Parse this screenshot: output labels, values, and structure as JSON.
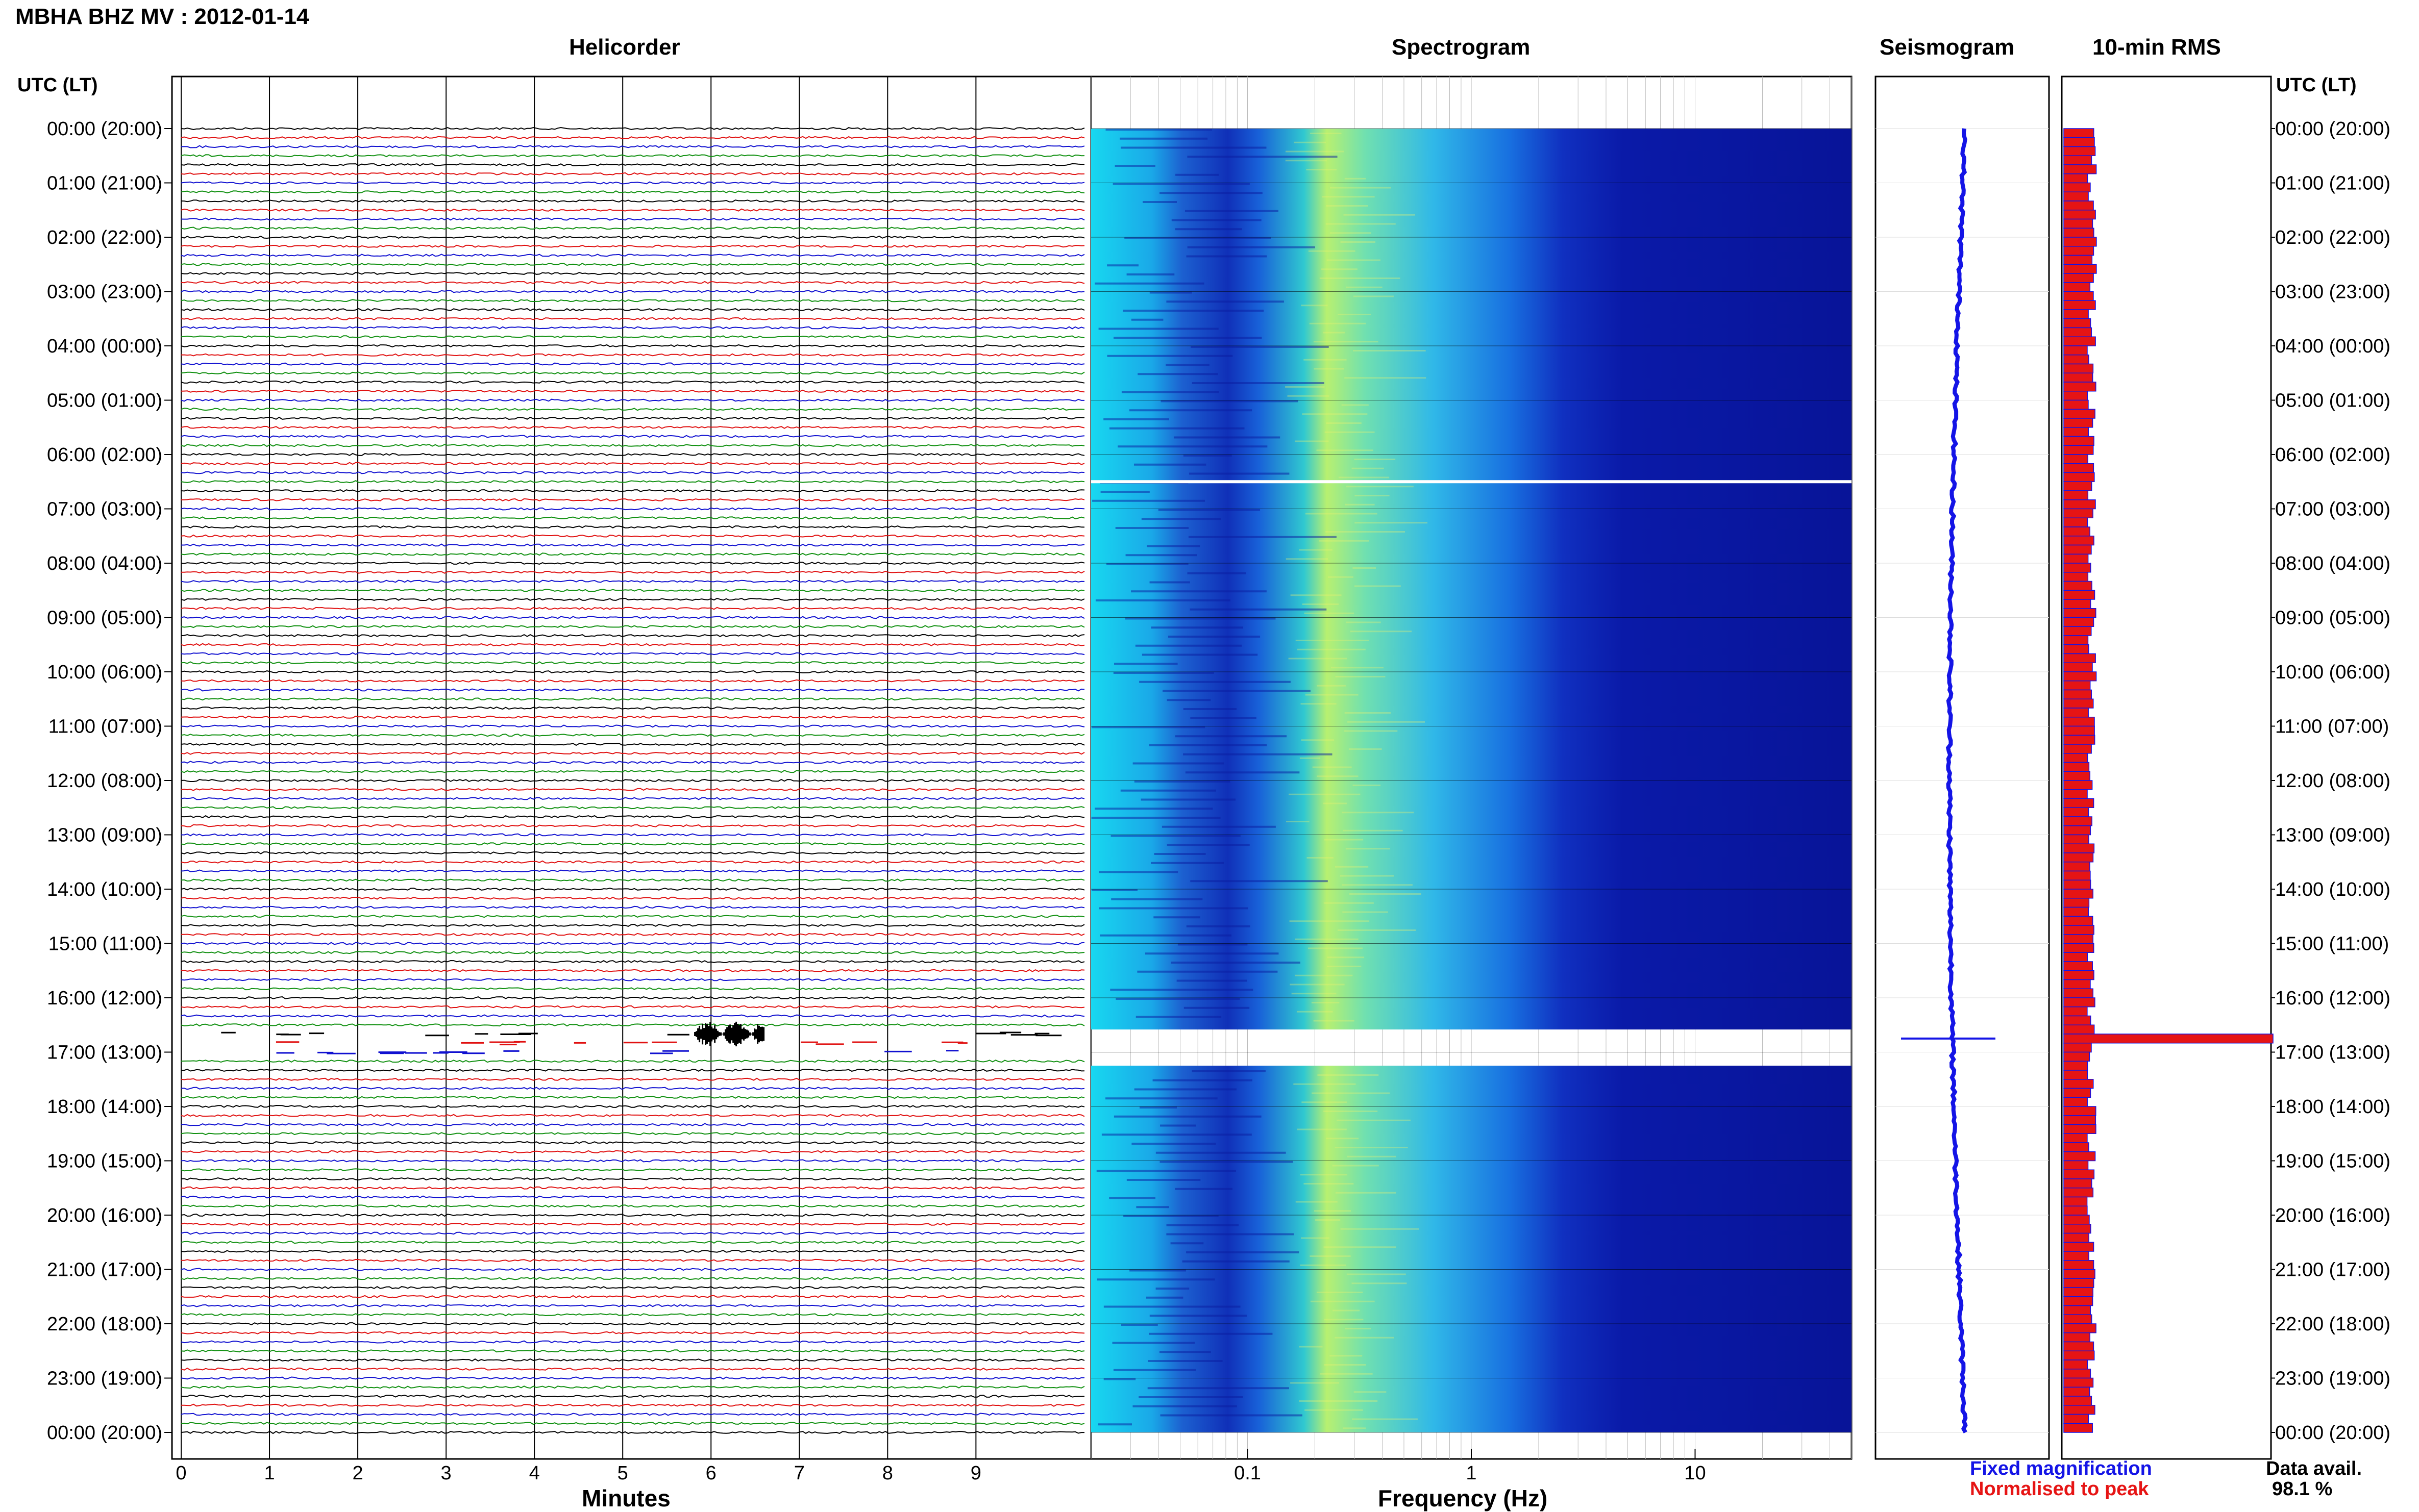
{
  "header": {
    "station_title": "MBHA BHZ MV : 2012-01-14",
    "panels": [
      "Helicorder",
      "Spectrogram",
      "Seismogram",
      "10-min RMS"
    ],
    "time_axis_label": "UTC (LT)"
  },
  "footer": {
    "helicorder_xlabel": "Minutes",
    "spectrogram_xlabel": "Frequency (Hz)",
    "legend": [
      {
        "label": "Fixed magnification",
        "color": "#1414e6"
      },
      {
        "label": "Normalised to peak",
        "color": "#e61414"
      }
    ],
    "data_avail_label": "Data avail.",
    "data_avail_value": "98.1 %"
  },
  "colors": {
    "trace_cycle": [
      "#000000",
      "#e01010",
      "#1010d0",
      "#109010"
    ],
    "spectrogram_low": "#1020b0",
    "spectrogram_high": "#e8f060",
    "seismogram": "#1414e6",
    "rms_fill": "#e61414",
    "rms_edge": "#1414e6"
  },
  "chart_data": [
    {
      "type": "line",
      "title": "Helicorder",
      "xlabel": "Minutes",
      "x_ticks": [
        "0",
        "1",
        "2",
        "3",
        "4",
        "5",
        "6",
        "7",
        "8",
        "9"
      ],
      "xlim": [
        0,
        10
      ],
      "y_ticks": [
        "00:00 (20:00)",
        "01:00 (21:00)",
        "02:00 (22:00)",
        "03:00 (23:00)",
        "04:00 (00:00)",
        "05:00 (01:00)",
        "06:00 (02:00)",
        "07:00 (03:00)",
        "08:00 (04:00)",
        "09:00 (05:00)",
        "10:00 (06:00)",
        "11:00 (07:00)",
        "12:00 (08:00)",
        "13:00 (09:00)",
        "14:00 (10:00)",
        "15:00 (11:00)",
        "16:00 (12:00)",
        "17:00 (13:00)",
        "18:00 (14:00)",
        "19:00 (15:00)",
        "20:00 (16:00)",
        "21:00 (17:00)",
        "22:00 (18:00)",
        "23:00 (19:00)",
        "00:00 (20:00)"
      ],
      "rows": 144,
      "row_minutes": 10,
      "event_utc": "16:40",
      "event_minutes": [
        5.8,
        6.6
      ],
      "gap_utc": [
        "16:30",
        "17:10"
      ]
    },
    {
      "type": "heatmap",
      "title": "Spectrogram",
      "xlabel": "Frequency (Hz)",
      "x_scale": "log",
      "x_ticks": [
        "0.1",
        "1",
        "10"
      ],
      "xlim": [
        0.02,
        50
      ],
      "peak_energy_hz": [
        0.15,
        0.4
      ],
      "gap_utc": [
        "16:35",
        "17:15"
      ],
      "white_line_utc": "06:30"
    },
    {
      "type": "line",
      "title": "Seismogram",
      "color": "#1414e6",
      "spike_utc": "16:45"
    },
    {
      "type": "bar",
      "title": "10-min RMS",
      "orientation": "horizontal",
      "bars": 144,
      "typical_fraction": 0.13,
      "peak_fraction": 1.0,
      "peak_utc": "16:40"
    }
  ]
}
